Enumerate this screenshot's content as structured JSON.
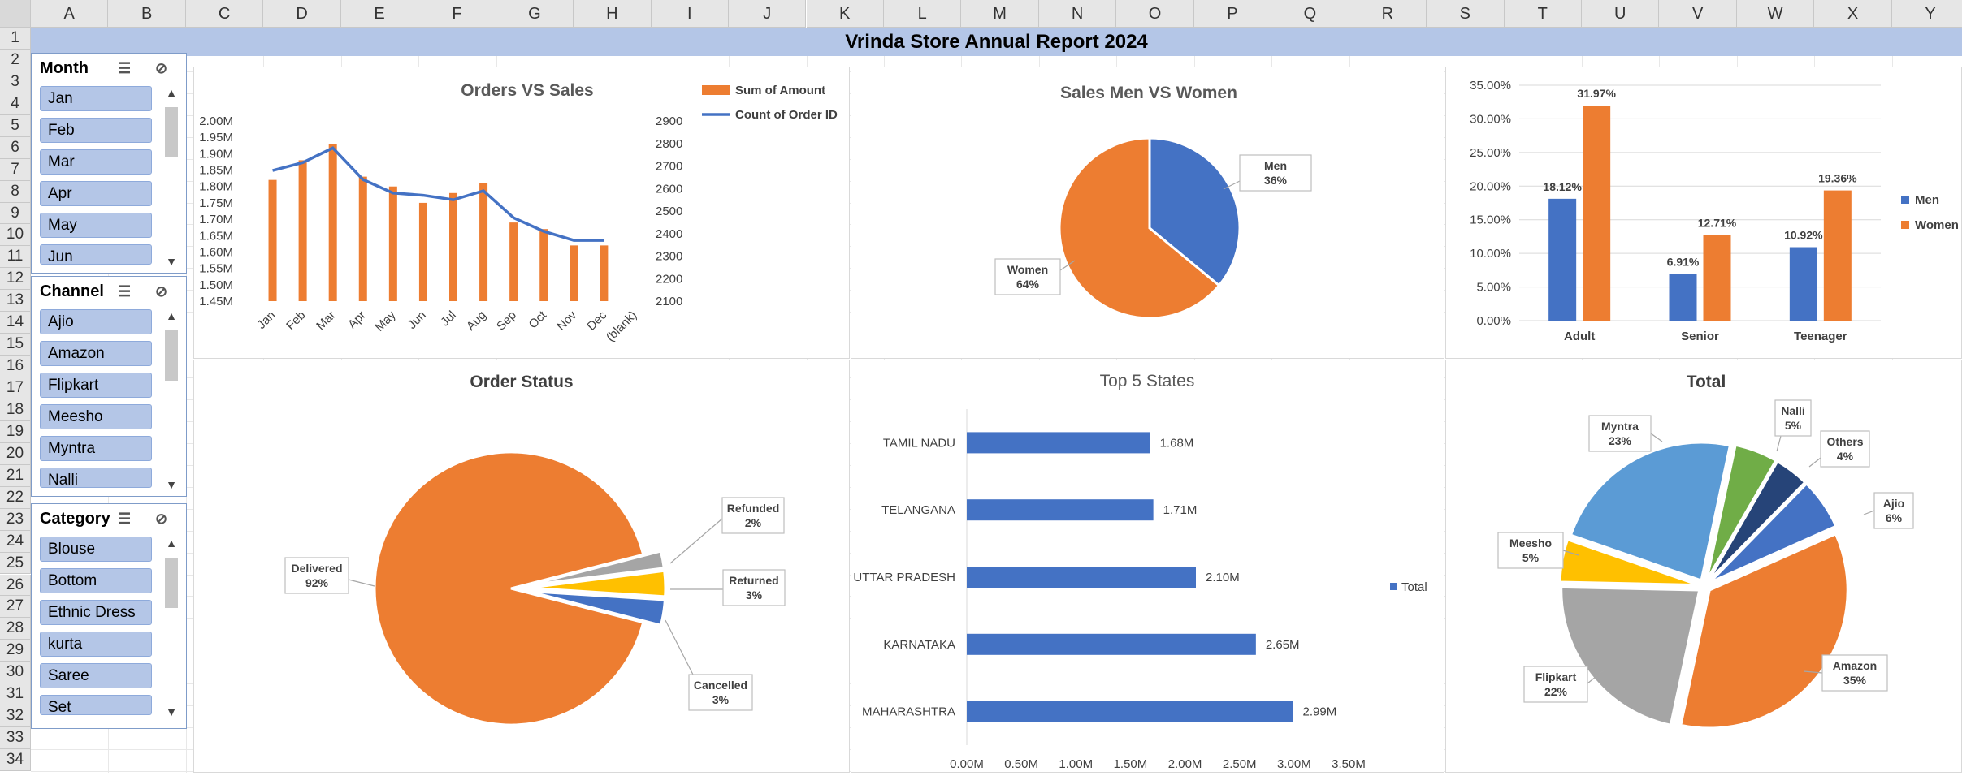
{
  "sheet": {
    "columns": [
      "A",
      "B",
      "C",
      "D",
      "E",
      "F",
      "G",
      "H",
      "I",
      "J",
      "K",
      "L",
      "M",
      "N",
      "O",
      "P",
      "Q",
      "R",
      "S",
      "T",
      "U",
      "V",
      "W",
      "X",
      "Y"
    ],
    "rows": [
      "1",
      "2",
      "3",
      "4",
      "5",
      "6",
      "7",
      "8",
      "9",
      "10",
      "11",
      "12",
      "13",
      "14",
      "15",
      "16",
      "17",
      "18",
      "19",
      "20",
      "21",
      "22",
      "23",
      "24",
      "25",
      "26",
      "27",
      "28",
      "29",
      "30",
      "31",
      "32",
      "33",
      "34"
    ]
  },
  "report_title": "Vrinda Store Annual Report 2024",
  "slicers": [
    {
      "title": "Month",
      "items": [
        "Jan",
        "Feb",
        "Mar",
        "Apr",
        "May",
        "Jun"
      ]
    },
    {
      "title": "Channel",
      "items": [
        "Ajio",
        "Amazon",
        "Flipkart",
        "Meesho",
        "Myntra",
        "Nalli"
      ]
    },
    {
      "title": "Category",
      "items": [
        "Blouse",
        "Bottom",
        "Ethnic Dress",
        "kurta",
        "Saree",
        "Set"
      ]
    }
  ],
  "chart_data": [
    {
      "type": "bar+line",
      "title": "Orders VS Sales",
      "categories": [
        "Jan",
        "Feb",
        "Mar",
        "Apr",
        "May",
        "Jun",
        "Jul",
        "Aug",
        "Sep",
        "Oct",
        "Nov",
        "Dec",
        "(blank)"
      ],
      "series": [
        {
          "name": "Sum of Amount",
          "axis": "left",
          "values": [
            1.82,
            1.88,
            1.93,
            1.83,
            1.8,
            1.75,
            1.78,
            1.81,
            1.69,
            1.67,
            1.62,
            1.62,
            null
          ],
          "color": "#ed7d31"
        },
        {
          "name": "Count of Order ID",
          "axis": "right",
          "values": [
            2680,
            2715,
            2780,
            2640,
            2580,
            2570,
            2550,
            2590,
            2470,
            2410,
            2370,
            2370,
            null
          ],
          "color": "#4472c4"
        }
      ],
      "y_left_ticks": [
        "1.45M",
        "1.50M",
        "1.55M",
        "1.60M",
        "1.65M",
        "1.70M",
        "1.75M",
        "1.80M",
        "1.85M",
        "1.90M",
        "1.95M",
        "2.00M"
      ],
      "ylim_left": [
        1.45,
        2.0
      ],
      "y_right_ticks": [
        "2100",
        "2200",
        "2300",
        "2400",
        "2500",
        "2600",
        "2700",
        "2800",
        "2900"
      ],
      "ylim_right": [
        2100,
        2900
      ],
      "legend": "top-right"
    },
    {
      "type": "pie",
      "title": "Sales Men VS Women",
      "labels": [
        "Men",
        "Women"
      ],
      "values": [
        36,
        64
      ],
      "label_text": [
        "36%",
        "64%"
      ],
      "colors": [
        "#4472c4",
        "#ed7d31"
      ]
    },
    {
      "type": "bar",
      "title": "",
      "categories": [
        "Adult",
        "Senior",
        "Teenager"
      ],
      "series": [
        {
          "name": "Men",
          "values": [
            18.12,
            6.91,
            10.92
          ],
          "labels": [
            "18.12%",
            "6.91%",
            "10.92%"
          ],
          "color": "#4472c4"
        },
        {
          "name": "Women",
          "values": [
            31.97,
            12.71,
            19.36
          ],
          "labels": [
            "31.97%",
            "12.71%",
            "19.36%"
          ],
          "color": "#ed7d31"
        }
      ],
      "y_ticks": [
        "0.00%",
        "5.00%",
        "10.00%",
        "15.00%",
        "20.00%",
        "25.00%",
        "30.00%",
        "35.00%"
      ],
      "ylim": [
        0,
        35
      ],
      "legend": "right"
    },
    {
      "type": "pie",
      "title": "Order Status",
      "labels": [
        "Delivered",
        "Refunded",
        "Returned",
        "Cancelled"
      ],
      "values": [
        92,
        2,
        3,
        3
      ],
      "label_text": [
        "92%",
        "2%",
        "3%",
        "3%"
      ],
      "colors": [
        "#ed7d31",
        "#a5a5a5",
        "#ffc000",
        "#4472c4"
      ],
      "exploded": true
    },
    {
      "type": "bar",
      "orientation": "horizontal",
      "title": "Top 5 States",
      "categories": [
        "TAMIL NADU",
        "TELANGANA",
        "UTTAR PRADESH",
        "KARNATAKA",
        "MAHARASHTRA"
      ],
      "values": [
        1.68,
        1.71,
        2.1,
        2.65,
        2.99
      ],
      "value_labels": [
        "1.68M",
        "1.71M",
        "2.10M",
        "2.65M",
        "2.99M"
      ],
      "series_name": "Total",
      "x_ticks": [
        "0.00M",
        "0.50M",
        "1.00M",
        "1.50M",
        "2.00M",
        "2.50M",
        "3.00M",
        "3.50M"
      ],
      "xlim": [
        0,
        3.5
      ],
      "legend": "right",
      "color": "#4472c4"
    },
    {
      "type": "pie",
      "title": "Total",
      "labels": [
        "Amazon",
        "Flipkart",
        "Meesho",
        "Myntra",
        "Nalli",
        "Others",
        "Ajio"
      ],
      "values": [
        35,
        22,
        5,
        23,
        5,
        4,
        6
      ],
      "label_text": [
        "35%",
        "22%",
        "5%",
        "23%",
        "5%",
        "4%",
        "6%"
      ],
      "colors": [
        "#ed7d31",
        "#a5a5a5",
        "#ffc000",
        "#5b9bd5",
        "#70ad47",
        "#264478",
        "#4472c4"
      ],
      "exploded": true
    }
  ]
}
